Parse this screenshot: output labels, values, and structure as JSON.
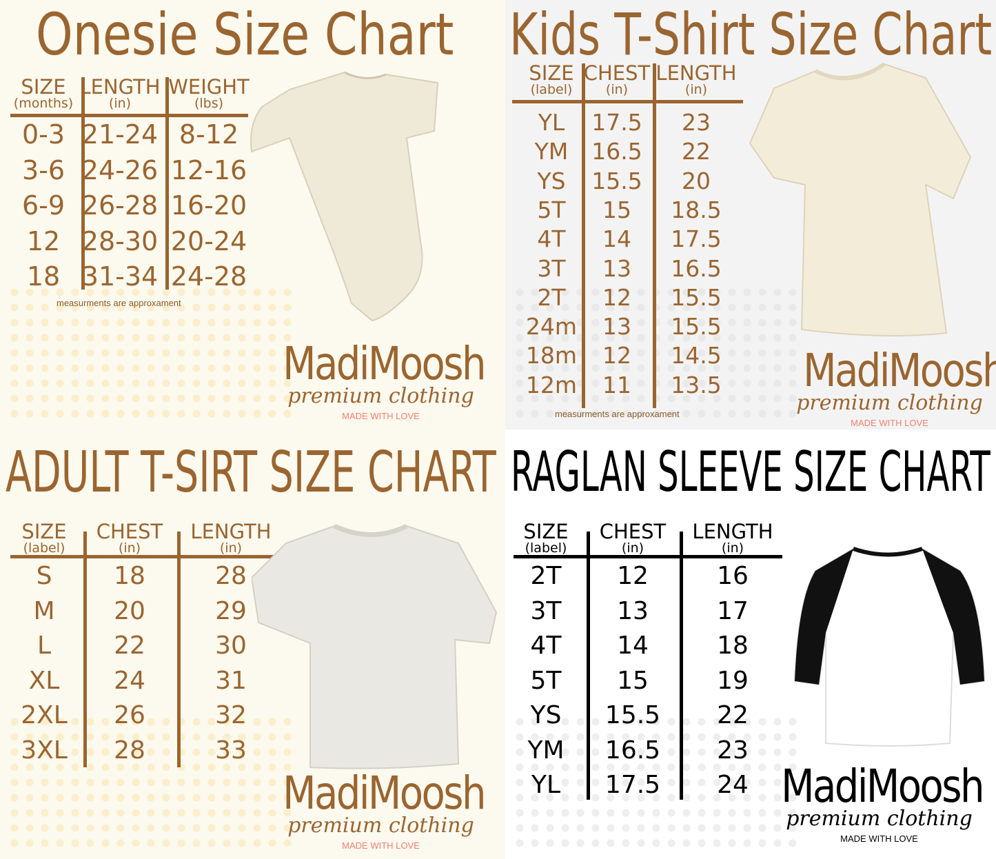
{
  "brand": {
    "name": "MadiMoosh",
    "tagline": "premium clothing",
    "made_with_love": "MADE WITH LOVE"
  },
  "note": "measurments are approxament",
  "colors": {
    "brown": "#9a6530",
    "love_pink": "#f07f6f",
    "black": "#000000"
  },
  "onesie": {
    "title": "Onesie Size Chart",
    "headers": [
      {
        "label": "SIZE",
        "unit": "(months)"
      },
      {
        "label": "LENGTH",
        "unit": "(in)"
      },
      {
        "label": "WEIGHT",
        "unit": "(lbs)"
      }
    ],
    "rows": [
      [
        "0-3",
        "21-24",
        "8-12"
      ],
      [
        "3-6",
        "24-26",
        "12-16"
      ],
      [
        "6-9",
        "26-28",
        "16-20"
      ],
      [
        "12",
        "28-30",
        "20-24"
      ],
      [
        "18",
        "31-34",
        "24-28"
      ]
    ]
  },
  "kids": {
    "title": "Kids T-Shirt Size Chart",
    "headers": [
      {
        "label": "SIZE",
        "unit": "(label)"
      },
      {
        "label": "CHEST",
        "unit": "(in)"
      },
      {
        "label": "LENGTH",
        "unit": "(in)"
      }
    ],
    "rows": [
      [
        "YL",
        "17.5",
        "23"
      ],
      [
        "YM",
        "16.5",
        "22"
      ],
      [
        "YS",
        "15.5",
        "20"
      ],
      [
        "5T",
        "15",
        "18.5"
      ],
      [
        "4T",
        "14",
        "17.5"
      ],
      [
        "3T",
        "13",
        "16.5"
      ],
      [
        "2T",
        "12",
        "15.5"
      ],
      [
        "24m",
        "13",
        "15.5"
      ],
      [
        "18m",
        "12",
        "14.5"
      ],
      [
        "12m",
        "11",
        "13.5"
      ]
    ]
  },
  "adult": {
    "title": "ADULT T-SIRT SIZE CHART",
    "headers": [
      {
        "label": "SIZE",
        "unit": "(label)"
      },
      {
        "label": "CHEST",
        "unit": "(in)"
      },
      {
        "label": "LENGTH",
        "unit": "(in)"
      }
    ],
    "rows": [
      [
        "S",
        "18",
        "28"
      ],
      [
        "M",
        "20",
        "29"
      ],
      [
        "L",
        "22",
        "30"
      ],
      [
        "XL",
        "24",
        "31"
      ],
      [
        "2XL",
        "26",
        "32"
      ],
      [
        "3XL",
        "28",
        "33"
      ]
    ]
  },
  "raglan": {
    "title": "RAGLAN SLEEVE SIZE CHART",
    "headers": [
      {
        "label": "SIZE",
        "unit": "(label)"
      },
      {
        "label": "CHEST",
        "unit": "(in)"
      },
      {
        "label": "LENGTH",
        "unit": "(in)"
      }
    ],
    "rows": [
      [
        "2T",
        "12",
        "16"
      ],
      [
        "3T",
        "13",
        "17"
      ],
      [
        "4T",
        "14",
        "18"
      ],
      [
        "5T",
        "15",
        "19"
      ],
      [
        "YS",
        "15.5",
        "22"
      ],
      [
        "YM",
        "16.5",
        "23"
      ],
      [
        "YL",
        "17.5",
        "24"
      ]
    ]
  }
}
